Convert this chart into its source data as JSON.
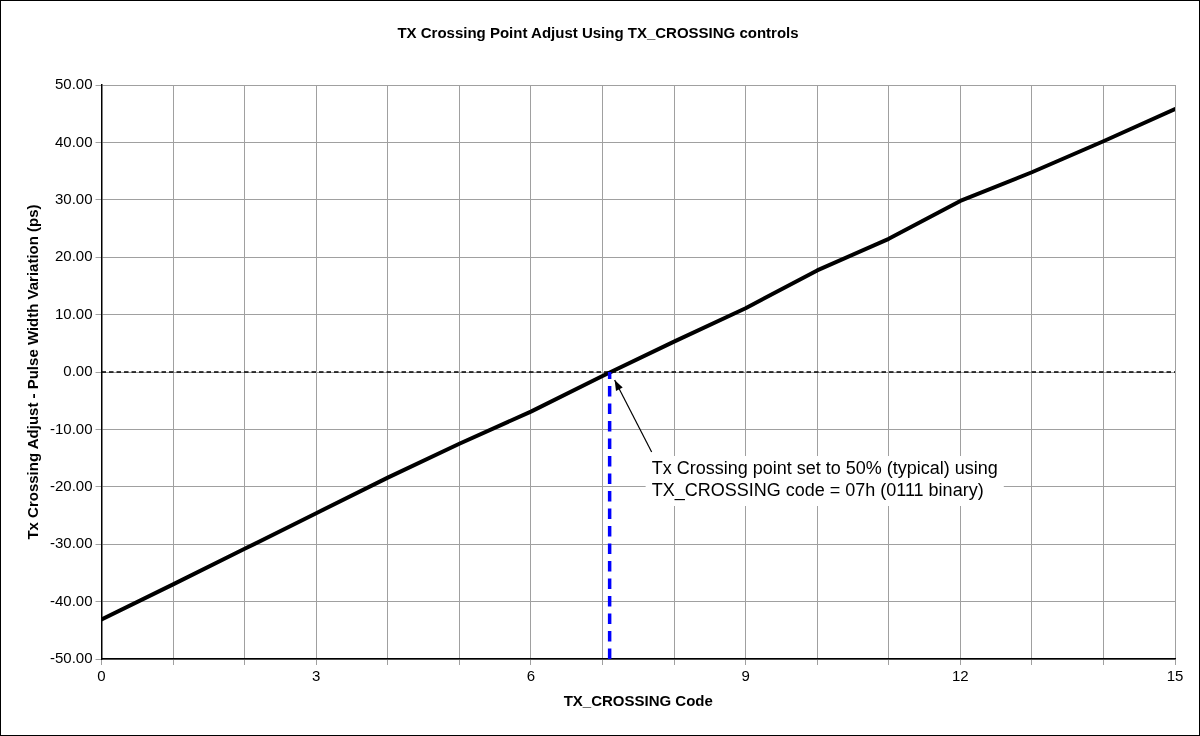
{
  "chart_data": {
    "type": "line",
    "title": "TX Crossing Point Adjust Using TX_CROSSING controls",
    "xlabel": "TX_CROSSING Code",
    "ylabel": "Tx Crossing Adjust - Pulse Width Variation (ps)",
    "x": [
      0,
      1,
      2,
      3,
      4,
      5,
      6,
      7,
      8,
      9,
      10,
      11,
      12,
      13,
      14,
      15
    ],
    "series": [
      {
        "color": "#000000",
        "values": [
          -43.1,
          -37.0,
          -30.8,
          -24.6,
          -18.4,
          -12.5,
          -6.9,
          -0.7,
          5.3,
          11.1,
          17.7,
          23.2,
          29.8,
          34.8,
          40.2,
          45.8
        ]
      }
    ],
    "xlim": [
      0,
      15
    ],
    "xticks": [
      0,
      {
        "value": 1,
        "label": null
      },
      {
        "value": 2,
        "label": null
      },
      3,
      {
        "value": 4,
        "label": null
      },
      {
        "value": 5,
        "label": null
      },
      6,
      {
        "value": 7,
        "label": null
      },
      {
        "value": 8,
        "label": null
      },
      9,
      {
        "value": 10,
        "label": null
      },
      {
        "value": 11,
        "label": null
      },
      12,
      {
        "value": 13,
        "label": null
      },
      {
        "value": 14,
        "label": null
      },
      15
    ],
    "ylim": [
      -50,
      50
    ],
    "yticks": [
      {
        "value": -50,
        "label": "-50.00"
      },
      {
        "value": -40,
        "label": "-40.00"
      },
      {
        "value": -30,
        "label": "-30.00"
      },
      {
        "value": -20,
        "label": "-20.00"
      },
      {
        "value": -10,
        "label": "-10.00"
      },
      {
        "value": 0,
        "label": "0.00"
      },
      {
        "value": 10,
        "label": "10.00"
      },
      {
        "value": 20,
        "label": "20.00"
      },
      {
        "value": 30,
        "label": "30.00"
      },
      {
        "value": 40,
        "label": "40.00"
      },
      {
        "value": 50,
        "label": "50.00"
      }
    ],
    "ref_lines": [
      {
        "axis": "y",
        "value": 0,
        "color": "#000000",
        "line_style": "dashed"
      },
      {
        "axis": "x",
        "value": 7.1,
        "color": "#0000ff",
        "line_style": "dashed"
      }
    ],
    "annotations": [
      "Tx Crossing point set to 50% (typical) using\nTX_CROSSING code = 07h (0111 binary)"
    ],
    "grid": true,
    "legend": false,
    "marker": "none",
    "line_style": "solid"
  }
}
